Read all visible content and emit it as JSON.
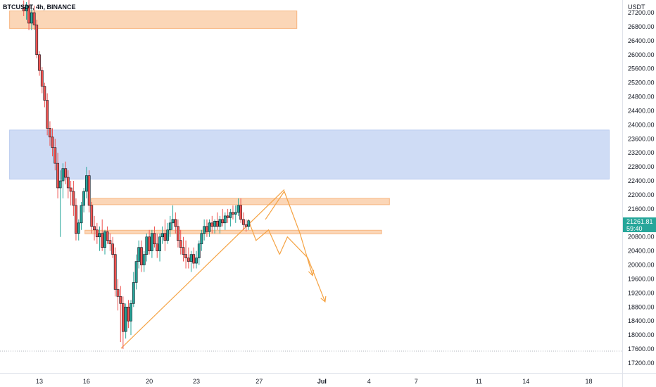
{
  "chart_data": {
    "type": "candlestick",
    "symbol": "BTCUSDT, 4h, BINANCE",
    "currency": "USDT",
    "ylim": [
      17100,
      27600
    ],
    "y_ticks": [
      27200,
      26800,
      26400,
      26000,
      25600,
      25200,
      24800,
      24400,
      24000,
      23600,
      23200,
      22800,
      22400,
      22000,
      21600,
      21200,
      20800,
      20400,
      20000,
      19600,
      19200,
      18800,
      18400,
      18000,
      17600,
      17200
    ],
    "y_tick_labels": [
      "27200.00",
      "26800.00",
      "26400.00",
      "26000.00",
      "25600.00",
      "25200.00",
      "24800.00",
      "24400.00",
      "24000.00",
      "23600.00",
      "23200.00",
      "22800.00",
      "22400.00",
      "22000.00",
      "21600.00",
      "21200.00",
      "20800.00",
      "20400.00",
      "20000.00",
      "19600.00",
      "19200.00",
      "18800.00",
      "18400.00",
      "18000.00",
      "17600.00",
      "17200.00"
    ],
    "x_ticks": [
      {
        "label": "13",
        "day": 13
      },
      {
        "label": "16",
        "day": 16
      },
      {
        "label": "20",
        "day": 20
      },
      {
        "label": "23",
        "day": 23
      },
      {
        "label": "27",
        "day": 27
      },
      {
        "label": "Jul",
        "day": 31
      },
      {
        "label": "4",
        "day": 34
      },
      {
        "label": "7",
        "day": 37
      },
      {
        "label": "11",
        "day": 41
      },
      {
        "label": "14",
        "day": 44
      },
      {
        "label": "18",
        "day": 48
      }
    ],
    "candles": [
      {
        "day": 12.0,
        "o": 27350,
        "h": 27550,
        "l": 27100,
        "c": 27250
      },
      {
        "day": 12.17,
        "o": 27250,
        "h": 27500,
        "l": 27000,
        "c": 27400
      },
      {
        "day": 12.33,
        "o": 27400,
        "h": 27600,
        "l": 26700,
        "c": 26900
      },
      {
        "day": 12.5,
        "o": 26900,
        "h": 27300,
        "l": 26700,
        "c": 27200
      },
      {
        "day": 12.67,
        "o": 27200,
        "h": 27400,
        "l": 26700,
        "c": 26850
      },
      {
        "day": 12.83,
        "o": 26850,
        "h": 27000,
        "l": 25900,
        "c": 26000
      },
      {
        "day": 13.0,
        "o": 26000,
        "h": 26100,
        "l": 25400,
        "c": 25550
      },
      {
        "day": 13.17,
        "o": 25550,
        "h": 25650,
        "l": 24900,
        "c": 25100
      },
      {
        "day": 13.33,
        "o": 25100,
        "h": 25200,
        "l": 24500,
        "c": 24700
      },
      {
        "day": 13.5,
        "o": 24700,
        "h": 24900,
        "l": 23700,
        "c": 23900
      },
      {
        "day": 13.67,
        "o": 23900,
        "h": 24100,
        "l": 23400,
        "c": 23650
      },
      {
        "day": 13.83,
        "o": 23650,
        "h": 23900,
        "l": 23100,
        "c": 23350
      },
      {
        "day": 14.0,
        "o": 23350,
        "h": 23600,
        "l": 22700,
        "c": 22900
      },
      {
        "day": 14.17,
        "o": 22900,
        "h": 23200,
        "l": 21900,
        "c": 22200
      },
      {
        "day": 14.33,
        "o": 22200,
        "h": 22700,
        "l": 20800,
        "c": 22400
      },
      {
        "day": 14.5,
        "o": 22400,
        "h": 22900,
        "l": 21900,
        "c": 22750
      },
      {
        "day": 14.67,
        "o": 22750,
        "h": 22950,
        "l": 22300,
        "c": 22500
      },
      {
        "day": 14.83,
        "o": 22500,
        "h": 22700,
        "l": 21900,
        "c": 22200
      },
      {
        "day": 15.0,
        "o": 22200,
        "h": 22400,
        "l": 21700,
        "c": 22100
      },
      {
        "day": 15.17,
        "o": 22100,
        "h": 22400,
        "l": 21400,
        "c": 21700
      },
      {
        "day": 15.33,
        "o": 21700,
        "h": 21900,
        "l": 20700,
        "c": 20900
      },
      {
        "day": 15.5,
        "o": 20900,
        "h": 21300,
        "l": 20700,
        "c": 21200
      },
      {
        "day": 15.67,
        "o": 21200,
        "h": 21800,
        "l": 21000,
        "c": 21700
      },
      {
        "day": 15.83,
        "o": 21700,
        "h": 22200,
        "l": 21500,
        "c": 22100
      },
      {
        "day": 16.0,
        "o": 22100,
        "h": 22800,
        "l": 21900,
        "c": 22550
      },
      {
        "day": 16.17,
        "o": 22550,
        "h": 22700,
        "l": 21500,
        "c": 21700
      },
      {
        "day": 16.33,
        "o": 21700,
        "h": 21800,
        "l": 20900,
        "c": 21100
      },
      {
        "day": 16.5,
        "o": 21100,
        "h": 21400,
        "l": 20700,
        "c": 21000
      },
      {
        "day": 16.67,
        "o": 21000,
        "h": 21200,
        "l": 20600,
        "c": 20800
      },
      {
        "day": 16.83,
        "o": 20800,
        "h": 21100,
        "l": 20400,
        "c": 20900
      },
      {
        "day": 17.0,
        "o": 20900,
        "h": 21300,
        "l": 20400,
        "c": 20500
      },
      {
        "day": 17.17,
        "o": 20500,
        "h": 21000,
        "l": 20300,
        "c": 20950
      },
      {
        "day": 17.33,
        "o": 20950,
        "h": 21100,
        "l": 20600,
        "c": 20700
      },
      {
        "day": 17.5,
        "o": 20700,
        "h": 20900,
        "l": 20400,
        "c": 20600
      },
      {
        "day": 17.67,
        "o": 20600,
        "h": 20800,
        "l": 20200,
        "c": 20300
      },
      {
        "day": 17.83,
        "o": 20300,
        "h": 20500,
        "l": 19100,
        "c": 19300
      },
      {
        "day": 18.0,
        "o": 19300,
        "h": 19600,
        "l": 18700,
        "c": 19100
      },
      {
        "day": 18.17,
        "o": 19100,
        "h": 19400,
        "l": 17800,
        "c": 18900
      },
      {
        "day": 18.33,
        "o": 18900,
        "h": 19100,
        "l": 17600,
        "c": 18100
      },
      {
        "day": 18.5,
        "o": 18100,
        "h": 18900,
        "l": 17900,
        "c": 18800
      },
      {
        "day": 18.67,
        "o": 18800,
        "h": 19000,
        "l": 18200,
        "c": 18400
      },
      {
        "day": 18.83,
        "o": 18400,
        "h": 19000,
        "l": 18000,
        "c": 18900
      },
      {
        "day": 19.0,
        "o": 18900,
        "h": 19800,
        "l": 18800,
        "c": 19500
      },
      {
        "day": 19.17,
        "o": 19500,
        "h": 20300,
        "l": 19300,
        "c": 20100
      },
      {
        "day": 19.33,
        "o": 20100,
        "h": 20700,
        "l": 19900,
        "c": 20500
      },
      {
        "day": 19.5,
        "o": 20500,
        "h": 20700,
        "l": 19800,
        "c": 20000
      },
      {
        "day": 19.67,
        "o": 20000,
        "h": 20400,
        "l": 19800,
        "c": 20300
      },
      {
        "day": 19.83,
        "o": 20300,
        "h": 20900,
        "l": 20100,
        "c": 20800
      },
      {
        "day": 20.0,
        "o": 20800,
        "h": 21000,
        "l": 20300,
        "c": 20400
      },
      {
        "day": 20.17,
        "o": 20400,
        "h": 21000,
        "l": 20200,
        "c": 20900
      },
      {
        "day": 20.33,
        "o": 20900,
        "h": 21100,
        "l": 20500,
        "c": 20600
      },
      {
        "day": 20.5,
        "o": 20600,
        "h": 20900,
        "l": 20200,
        "c": 20400
      },
      {
        "day": 20.67,
        "o": 20400,
        "h": 20900,
        "l": 20100,
        "c": 20800
      },
      {
        "day": 20.83,
        "o": 20800,
        "h": 21100,
        "l": 20600,
        "c": 20900
      },
      {
        "day": 21.0,
        "o": 20900,
        "h": 21300,
        "l": 20400,
        "c": 20700
      },
      {
        "day": 21.17,
        "o": 20700,
        "h": 21200,
        "l": 20600,
        "c": 21000
      },
      {
        "day": 21.33,
        "o": 21000,
        "h": 21400,
        "l": 20800,
        "c": 21200
      },
      {
        "day": 21.5,
        "o": 21200,
        "h": 21700,
        "l": 21000,
        "c": 21300
      },
      {
        "day": 21.67,
        "o": 21300,
        "h": 21500,
        "l": 20900,
        "c": 21100
      },
      {
        "day": 21.83,
        "o": 21100,
        "h": 21300,
        "l": 20500,
        "c": 20700
      },
      {
        "day": 22.0,
        "o": 20700,
        "h": 21000,
        "l": 20300,
        "c": 20500
      },
      {
        "day": 22.17,
        "o": 20500,
        "h": 20800,
        "l": 20100,
        "c": 20300
      },
      {
        "day": 22.33,
        "o": 20300,
        "h": 20700,
        "l": 19900,
        "c": 20200
      },
      {
        "day": 22.5,
        "o": 20200,
        "h": 20500,
        "l": 19900,
        "c": 20100
      },
      {
        "day": 22.67,
        "o": 20100,
        "h": 20400,
        "l": 19800,
        "c": 20300
      },
      {
        "day": 22.83,
        "o": 20300,
        "h": 20500,
        "l": 19900,
        "c": 20050
      },
      {
        "day": 23.0,
        "o": 20050,
        "h": 20400,
        "l": 19900,
        "c": 20200
      },
      {
        "day": 23.17,
        "o": 20200,
        "h": 20700,
        "l": 20000,
        "c": 20600
      },
      {
        "day": 23.33,
        "o": 20600,
        "h": 21000,
        "l": 20400,
        "c": 20900
      },
      {
        "day": 23.5,
        "o": 20900,
        "h": 21300,
        "l": 20700,
        "c": 21100
      },
      {
        "day": 23.67,
        "o": 21100,
        "h": 21300,
        "l": 20800,
        "c": 20950
      },
      {
        "day": 23.83,
        "o": 20950,
        "h": 21300,
        "l": 20800,
        "c": 21200
      },
      {
        "day": 24.0,
        "o": 21200,
        "h": 21400,
        "l": 20900,
        "c": 21100
      },
      {
        "day": 24.17,
        "o": 21100,
        "h": 21300,
        "l": 20900,
        "c": 21250
      },
      {
        "day": 24.33,
        "o": 21250,
        "h": 21500,
        "l": 21000,
        "c": 21100
      },
      {
        "day": 24.5,
        "o": 21100,
        "h": 21400,
        "l": 20900,
        "c": 21300
      },
      {
        "day": 24.67,
        "o": 21300,
        "h": 21600,
        "l": 21100,
        "c": 21200
      },
      {
        "day": 24.83,
        "o": 21200,
        "h": 21500,
        "l": 21000,
        "c": 21400
      },
      {
        "day": 25.0,
        "o": 21400,
        "h": 21600,
        "l": 21200,
        "c": 21350
      },
      {
        "day": 25.17,
        "o": 21350,
        "h": 21600,
        "l": 21100,
        "c": 21500
      },
      {
        "day": 25.33,
        "o": 21500,
        "h": 21700,
        "l": 21300,
        "c": 21450
      },
      {
        "day": 25.5,
        "o": 21450,
        "h": 21700,
        "l": 21200,
        "c": 21500
      },
      {
        "day": 25.67,
        "o": 21500,
        "h": 21900,
        "l": 21400,
        "c": 21700
      },
      {
        "day": 25.83,
        "o": 21700,
        "h": 21900,
        "l": 21200,
        "c": 21300
      },
      {
        "day": 26.0,
        "o": 21300,
        "h": 21500,
        "l": 21000,
        "c": 21150
      },
      {
        "day": 26.17,
        "o": 21150,
        "h": 21300,
        "l": 20950,
        "c": 21100
      },
      {
        "day": 26.33,
        "o": 21100,
        "h": 21300,
        "l": 21000,
        "c": 21262
      }
    ],
    "zones": [
      {
        "name": "supply-zone-top",
        "y_from": 26750,
        "y_to": 27250,
        "x_from": 11.1,
        "x_to": 29.4,
        "color": "#fbd6b7",
        "border": "#f7b580"
      },
      {
        "name": "resistance-zone-blue",
        "y_from": 22450,
        "y_to": 23850,
        "x_from": 11.1,
        "x_to": 49.3,
        "color": "#cfdcf5",
        "border": "#b7c9ee"
      },
      {
        "name": "zone-upper-orange",
        "y_from": 21720,
        "y_to": 21900,
        "x_from": 16.3,
        "x_to": 35.3,
        "color": "#fbd6b7",
        "border": "#f7b580"
      },
      {
        "name": "zone-lower-orange",
        "y_from": 20890,
        "y_to": 20990,
        "x_from": 15.9,
        "x_to": 34.8,
        "color": "#fbd6b7",
        "border": "#f7b580"
      }
    ],
    "lines": [
      {
        "name": "rising-trendline",
        "points": [
          [
            18.2,
            17620
          ],
          [
            28.6,
            22150
          ]
        ],
        "color": "#f5a344"
      }
    ],
    "projection_paths": [
      {
        "name": "projection-path-a",
        "points": [
          [
            27.4,
            21300
          ],
          [
            28.6,
            22100
          ],
          [
            29.6,
            20900
          ],
          [
            30.4,
            19700
          ]
        ],
        "color": "#f5a344",
        "arrow": true
      },
      {
        "name": "projection-path-b",
        "points": [
          [
            26.3,
            21300
          ],
          [
            26.8,
            20700
          ],
          [
            27.6,
            21000
          ],
          [
            28.3,
            20300
          ]
        ],
        "color": "#f5a344",
        "arrow": false
      },
      {
        "name": "projection-path-c",
        "points": [
          [
            28.3,
            20300
          ],
          [
            28.8,
            20800
          ],
          [
            30.1,
            20200
          ],
          [
            31.2,
            18950
          ]
        ],
        "color": "#f5a344",
        "arrow": true
      }
    ],
    "last_price": {
      "value": 21262,
      "label": "21261.81",
      "countdown": "59:40",
      "color": "#26a69a"
    },
    "colors": {
      "up": "#26a69a",
      "down": "#ef5350",
      "body_border": "#131722",
      "grid": "#f0f3fa"
    }
  }
}
